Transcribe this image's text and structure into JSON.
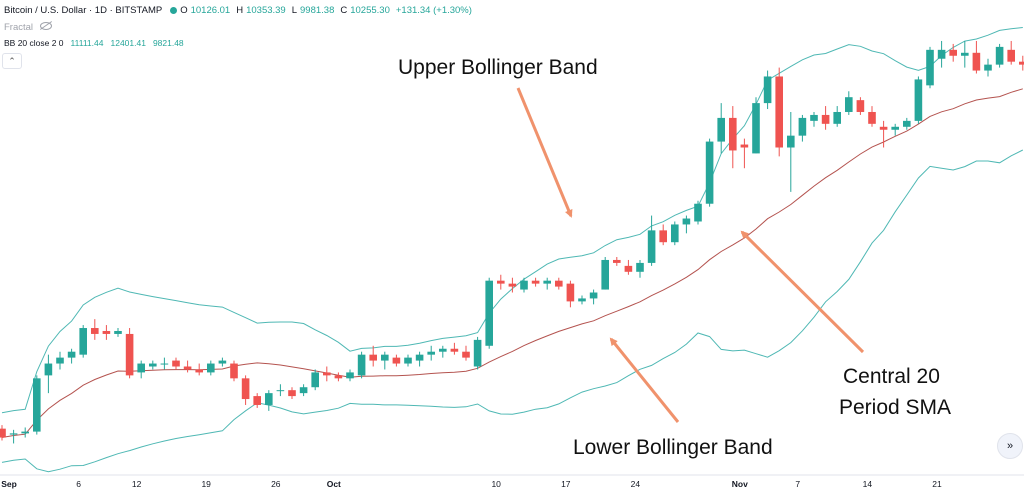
{
  "header": {
    "symbol": "Bitcoin / U.S. Dollar · 1D · BITSTAMP",
    "open_label": "O",
    "open": "10126.01",
    "high_label": "H",
    "high": "10353.39",
    "low_label": "L",
    "low": "9981.38",
    "close_label": "C",
    "close": "10255.30",
    "change": "+131.34 (+1.30%)",
    "indicator1": "Fractal",
    "indicator2": "BB 20 close 2 0",
    "bb_basis": "11111.44",
    "bb_upper": "12401.41",
    "bb_lower": "9821.48"
  },
  "annotations": {
    "upper": "Upper Bollinger Band",
    "lower": "Lower Bollinger Band",
    "sma_line1": "Central 20",
    "sma_line2": "Period SMA"
  },
  "controls": {
    "collapse_icon": "chevron-up-icon",
    "scroll_icon": "double-chevron-right-icon"
  },
  "colors": {
    "up": "#26a69a",
    "down": "#ef5350",
    "band": "#4fb8b4",
    "basis": "#b4534f",
    "arrow": "#f0926c"
  },
  "chart_data": {
    "type": "candlestick",
    "x_tick_labels": [
      "Sep",
      "6",
      "12",
      "19",
      "26",
      "Oct",
      "10",
      "17",
      "24",
      "Nov",
      "7",
      "14",
      "21"
    ],
    "legend": "none",
    "grid": false,
    "candles": [
      [
        10400,
        10460,
        10200,
        10250
      ],
      [
        10300,
        10380,
        10150,
        10320
      ],
      [
        10320,
        10420,
        10250,
        10350
      ],
      [
        10350,
        11300,
        10300,
        11250
      ],
      [
        11300,
        11650,
        11000,
        11500
      ],
      [
        11500,
        11700,
        11400,
        11600
      ],
      [
        11600,
        11750,
        11500,
        11700
      ],
      [
        11650,
        12150,
        11600,
        12100
      ],
      [
        12100,
        12250,
        11900,
        12000
      ],
      [
        12050,
        12150,
        11900,
        12000
      ],
      [
        12000,
        12100,
        11950,
        12050
      ],
      [
        12000,
        12100,
        11250,
        11300
      ],
      [
        11350,
        11550,
        11250,
        11500
      ],
      [
        11450,
        11550,
        11400,
        11500
      ],
      [
        11500,
        11600,
        11400,
        11500
      ],
      [
        11550,
        11600,
        11400,
        11450
      ],
      [
        11450,
        11550,
        11350,
        11400
      ],
      [
        11400,
        11500,
        11300,
        11350
      ],
      [
        11350,
        11550,
        11300,
        11500
      ],
      [
        11500,
        11600,
        11450,
        11550
      ],
      [
        11500,
        11550,
        11200,
        11250
      ],
      [
        11250,
        11300,
        10800,
        10900
      ],
      [
        10950,
        11000,
        10750,
        10800
      ],
      [
        10800,
        11050,
        10700,
        11000
      ],
      [
        11050,
        11150,
        10950,
        11050
      ],
      [
        11050,
        11100,
        10900,
        10950
      ],
      [
        11000,
        11150,
        10950,
        11100
      ],
      [
        11100,
        11400,
        11050,
        11350
      ],
      [
        11350,
        11450,
        11200,
        11300
      ],
      [
        11300,
        11350,
        11200,
        11250
      ],
      [
        11250,
        11400,
        11200,
        11350
      ],
      [
        11300,
        11700,
        11250,
        11650
      ],
      [
        11650,
        11800,
        11450,
        11550
      ],
      [
        11550,
        11700,
        11400,
        11650
      ],
      [
        11600,
        11650,
        11450,
        11500
      ],
      [
        11500,
        11650,
        11450,
        11600
      ],
      [
        11550,
        11700,
        11450,
        11650
      ],
      [
        11650,
        11800,
        11550,
        11700
      ],
      [
        11700,
        11800,
        11600,
        11750
      ],
      [
        11750,
        11850,
        11650,
        11700
      ],
      [
        11700,
        11800,
        11550,
        11600
      ],
      [
        11450,
        11950,
        11400,
        11900
      ],
      [
        11800,
        12950,
        11750,
        12900
      ],
      [
        12900,
        13000,
        12750,
        12850
      ],
      [
        12850,
        12950,
        12700,
        12800
      ],
      [
        12750,
        12950,
        12700,
        12900
      ],
      [
        12900,
        12950,
        12800,
        12850
      ],
      [
        12850,
        12950,
        12750,
        12900
      ],
      [
        12900,
        12950,
        12750,
        12800
      ],
      [
        12850,
        12900,
        12450,
        12550
      ],
      [
        12550,
        12650,
        12500,
        12600
      ],
      [
        12600,
        12750,
        12500,
        12700
      ],
      [
        12750,
        13300,
        12750,
        13250
      ],
      [
        13250,
        13300,
        13150,
        13200
      ],
      [
        13150,
        13250,
        13000,
        13050
      ],
      [
        13050,
        13250,
        12950,
        13200
      ],
      [
        13200,
        14000,
        13150,
        13750
      ],
      [
        13750,
        13850,
        13500,
        13550
      ],
      [
        13550,
        13900,
        13500,
        13850
      ],
      [
        13850,
        14000,
        13700,
        13950
      ],
      [
        13900,
        14250,
        13850,
        14200
      ],
      [
        14200,
        15300,
        14150,
        15250
      ],
      [
        15250,
        15900,
        15050,
        15650
      ],
      [
        15650,
        15850,
        14800,
        15100
      ],
      [
        15200,
        15300,
        14800,
        15150
      ],
      [
        15050,
        16000,
        15050,
        15900
      ],
      [
        15900,
        16450,
        15800,
        16350
      ],
      [
        16350,
        16500,
        15000,
        15150
      ],
      [
        15150,
        15750,
        14400,
        15350
      ],
      [
        15350,
        15700,
        15250,
        15650
      ],
      [
        15600,
        15750,
        15500,
        15700
      ],
      [
        15700,
        15850,
        15450,
        15550
      ],
      [
        15550,
        15850,
        15500,
        15750
      ],
      [
        15750,
        16100,
        15700,
        16000
      ],
      [
        15950,
        16000,
        15700,
        15750
      ],
      [
        15750,
        15850,
        15500,
        15550
      ],
      [
        15500,
        15600,
        15150,
        15450
      ],
      [
        15450,
        15550,
        15350,
        15500
      ],
      [
        15500,
        15650,
        15450,
        15600
      ],
      [
        15600,
        16350,
        15550,
        16300
      ],
      [
        16200,
        16850,
        16150,
        16800
      ],
      [
        16650,
        16950,
        16500,
        16800
      ],
      [
        16800,
        16900,
        16600,
        16700
      ],
      [
        16700,
        16950,
        16500,
        16750
      ],
      [
        16750,
        16950,
        16400,
        16450
      ],
      [
        16450,
        16650,
        16350,
        16550
      ],
      [
        16550,
        16900,
        16500,
        16850
      ],
      [
        16800,
        16950,
        16550,
        16600
      ],
      [
        16600,
        16700,
        16450,
        16550
      ]
    ]
  }
}
